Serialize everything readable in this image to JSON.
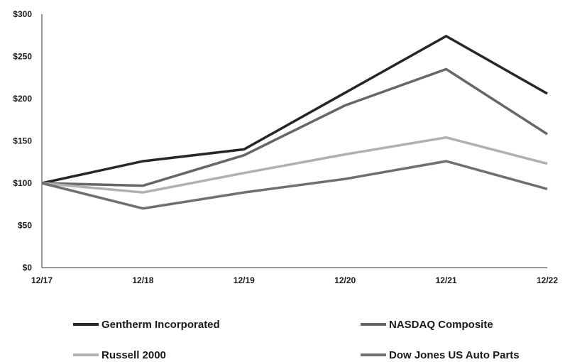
{
  "chart_data": {
    "type": "line",
    "title": "",
    "xlabel": "",
    "ylabel": "",
    "x": [
      "12/17",
      "12/18",
      "12/19",
      "12/20",
      "12/21",
      "12/22"
    ],
    "y_ticks": [
      "$0",
      "$50",
      "$100",
      "$150",
      "$200",
      "$250",
      "$300"
    ],
    "y_tick_values": [
      0,
      50,
      100,
      150,
      200,
      250,
      300
    ],
    "ylim": [
      0,
      300
    ],
    "grid": false,
    "legend_position": "bottom",
    "series": [
      {
        "name": "Gentherm Incorporated",
        "color": "#262626",
        "values": [
          100,
          126,
          140,
          207,
          274,
          206
        ]
      },
      {
        "name": "NASDAQ Composite",
        "color": "#666666",
        "values": [
          100,
          97,
          133,
          192,
          235,
          158
        ]
      },
      {
        "name": "Russell 2000",
        "color": "#b0b0b0",
        "values": [
          100,
          89,
          112,
          134,
          154,
          123
        ]
      },
      {
        "name": "Dow Jones US Auto Parts",
        "color": "#6f6f6f",
        "values": [
          100,
          70,
          89,
          105,
          126,
          93
        ]
      }
    ]
  }
}
